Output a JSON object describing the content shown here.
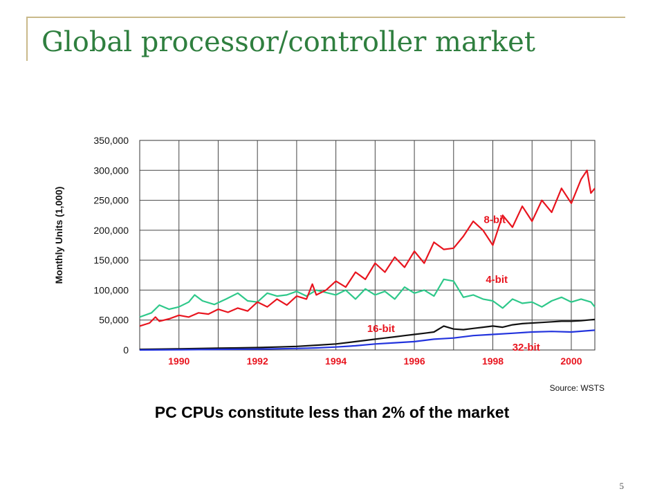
{
  "slide": {
    "title": "Global processor/controller market",
    "caption": "PC CPUs constitute less than 2% of the market",
    "page_number": "5"
  },
  "chart_data": {
    "type": "line",
    "ylabel": "Monthly Units (1,000)",
    "source": "Source: WSTS",
    "ylim": [
      0,
      350000
    ],
    "yticks": [
      "350,000",
      "300,000",
      "250,000",
      "200,000",
      "150,000",
      "100,000",
      "50,000",
      "0"
    ],
    "xlim": [
      1989,
      2000.6
    ],
    "xticks": [
      1990,
      1992,
      1994,
      1996,
      1998,
      2000
    ],
    "xtick_labels": [
      "1990",
      "1992",
      "1994",
      "1996",
      "1998",
      "2000"
    ],
    "grid": true,
    "series": [
      {
        "name": "8-bit",
        "color": "#e8141e",
        "label_pos": [
          1998.05,
          212000
        ],
        "points": [
          [
            1989.0,
            40000
          ],
          [
            1989.25,
            45000
          ],
          [
            1989.4,
            55000
          ],
          [
            1989.5,
            48000
          ],
          [
            1989.75,
            52000
          ],
          [
            1990.0,
            58000
          ],
          [
            1990.25,
            55000
          ],
          [
            1990.5,
            62000
          ],
          [
            1990.75,
            60000
          ],
          [
            1991.0,
            68000
          ],
          [
            1991.25,
            63000
          ],
          [
            1991.5,
            70000
          ],
          [
            1991.75,
            65000
          ],
          [
            1992.0,
            80000
          ],
          [
            1992.25,
            72000
          ],
          [
            1992.5,
            85000
          ],
          [
            1992.75,
            75000
          ],
          [
            1993.0,
            90000
          ],
          [
            1993.25,
            85000
          ],
          [
            1993.4,
            110000
          ],
          [
            1993.5,
            92000
          ],
          [
            1993.75,
            100000
          ],
          [
            1994.0,
            115000
          ],
          [
            1994.25,
            105000
          ],
          [
            1994.5,
            130000
          ],
          [
            1994.75,
            118000
          ],
          [
            1995.0,
            145000
          ],
          [
            1995.25,
            130000
          ],
          [
            1995.5,
            155000
          ],
          [
            1995.75,
            138000
          ],
          [
            1996.0,
            165000
          ],
          [
            1996.25,
            145000
          ],
          [
            1996.5,
            180000
          ],
          [
            1996.75,
            168000
          ],
          [
            1997.0,
            170000
          ],
          [
            1997.25,
            190000
          ],
          [
            1997.5,
            215000
          ],
          [
            1997.75,
            200000
          ],
          [
            1998.0,
            175000
          ],
          [
            1998.25,
            225000
          ],
          [
            1998.5,
            205000
          ],
          [
            1998.75,
            240000
          ],
          [
            1999.0,
            215000
          ],
          [
            1999.25,
            250000
          ],
          [
            1999.5,
            230000
          ],
          [
            1999.75,
            270000
          ],
          [
            2000.0,
            245000
          ],
          [
            2000.25,
            285000
          ],
          [
            2000.4,
            300000
          ],
          [
            2000.5,
            262000
          ],
          [
            2000.6,
            270000
          ]
        ]
      },
      {
        "name": "4-bit",
        "color": "#2ec88a",
        "label_pos": [
          1998.1,
          112000
        ],
        "points": [
          [
            1989.0,
            55000
          ],
          [
            1989.3,
            62000
          ],
          [
            1989.5,
            75000
          ],
          [
            1989.75,
            68000
          ],
          [
            1990.0,
            72000
          ],
          [
            1990.25,
            80000
          ],
          [
            1990.4,
            92000
          ],
          [
            1990.6,
            82000
          ],
          [
            1990.9,
            76000
          ],
          [
            1991.2,
            85000
          ],
          [
            1991.5,
            95000
          ],
          [
            1991.75,
            82000
          ],
          [
            1992.0,
            80000
          ],
          [
            1992.25,
            95000
          ],
          [
            1992.5,
            90000
          ],
          [
            1992.75,
            92000
          ],
          [
            1993.0,
            98000
          ],
          [
            1993.25,
            90000
          ],
          [
            1993.5,
            100000
          ],
          [
            1993.75,
            96000
          ],
          [
            1994.0,
            92000
          ],
          [
            1994.25,
            100000
          ],
          [
            1994.5,
            85000
          ],
          [
            1994.75,
            102000
          ],
          [
            1995.0,
            92000
          ],
          [
            1995.25,
            98000
          ],
          [
            1995.5,
            85000
          ],
          [
            1995.75,
            105000
          ],
          [
            1996.0,
            95000
          ],
          [
            1996.25,
            100000
          ],
          [
            1996.5,
            90000
          ],
          [
            1996.75,
            118000
          ],
          [
            1997.0,
            115000
          ],
          [
            1997.25,
            88000
          ],
          [
            1997.5,
            92000
          ],
          [
            1997.75,
            85000
          ],
          [
            1998.0,
            82000
          ],
          [
            1998.25,
            70000
          ],
          [
            1998.5,
            85000
          ],
          [
            1998.75,
            78000
          ],
          [
            1999.0,
            80000
          ],
          [
            1999.25,
            72000
          ],
          [
            1999.5,
            82000
          ],
          [
            1999.75,
            88000
          ],
          [
            2000.0,
            80000
          ],
          [
            2000.25,
            85000
          ],
          [
            2000.5,
            80000
          ],
          [
            2000.6,
            72000
          ]
        ]
      },
      {
        "name": "16-bit",
        "color": "#111111",
        "label_pos": [
          1995.15,
          30000
        ],
        "points": [
          [
            1989.0,
            1000
          ],
          [
            1989.5,
            1500
          ],
          [
            1990.0,
            2000
          ],
          [
            1990.5,
            2500
          ],
          [
            1991.0,
            3000
          ],
          [
            1991.5,
            3500
          ],
          [
            1992.0,
            4000
          ],
          [
            1992.5,
            5000
          ],
          [
            1993.0,
            6000
          ],
          [
            1993.5,
            8000
          ],
          [
            1994.0,
            10000
          ],
          [
            1994.5,
            14000
          ],
          [
            1995.0,
            18000
          ],
          [
            1995.25,
            20000
          ],
          [
            1995.5,
            22000
          ],
          [
            1995.75,
            24000
          ],
          [
            1996.0,
            26000
          ],
          [
            1996.25,
            28000
          ],
          [
            1996.5,
            30000
          ],
          [
            1996.75,
            40000
          ],
          [
            1997.0,
            35000
          ],
          [
            1997.25,
            34000
          ],
          [
            1997.5,
            36000
          ],
          [
            1997.75,
            38000
          ],
          [
            1998.0,
            40000
          ],
          [
            1998.25,
            38000
          ],
          [
            1998.5,
            42000
          ],
          [
            1998.75,
            44000
          ],
          [
            1999.0,
            45000
          ],
          [
            1999.25,
            46000
          ],
          [
            1999.5,
            47000
          ],
          [
            1999.75,
            48000
          ],
          [
            2000.0,
            48000
          ],
          [
            2000.25,
            49000
          ],
          [
            2000.6,
            51000
          ]
        ]
      },
      {
        "name": "32-bit",
        "color": "#2233dd",
        "label_pos": [
          1998.85,
          -1000
        ],
        "points": [
          [
            1989.0,
            0
          ],
          [
            1990.0,
            500
          ],
          [
            1991.0,
            1000
          ],
          [
            1992.0,
            1500
          ],
          [
            1993.0,
            2500
          ],
          [
            1993.5,
            3500
          ],
          [
            1994.0,
            5000
          ],
          [
            1994.5,
            7000
          ],
          [
            1995.0,
            10000
          ],
          [
            1995.5,
            12000
          ],
          [
            1996.0,
            14000
          ],
          [
            1996.5,
            18000
          ],
          [
            1997.0,
            20000
          ],
          [
            1997.5,
            24000
          ],
          [
            1998.0,
            26000
          ],
          [
            1998.5,
            28000
          ],
          [
            1999.0,
            30000
          ],
          [
            1999.5,
            31000
          ],
          [
            2000.0,
            30000
          ],
          [
            2000.6,
            33000
          ]
        ]
      }
    ]
  }
}
